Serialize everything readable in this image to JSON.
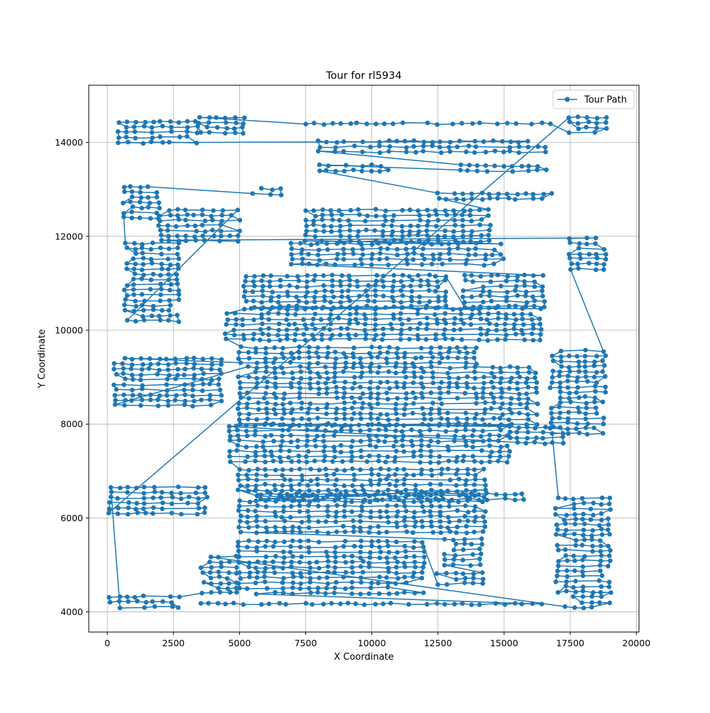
{
  "chart_data": {
    "type": "line",
    "title": "Tour for rl5934",
    "xlabel": "X Coordinate",
    "ylabel": "Y Coordinate",
    "xlim": [
      -700,
      20100
    ],
    "ylim": [
      3570,
      15220
    ],
    "xticks": [
      0,
      2500,
      5000,
      7500,
      10000,
      12500,
      15000,
      17500,
      20000
    ],
    "xtick_labels": [
      "0",
      "2500",
      "5000",
      "7500",
      "10000",
      "12500",
      "15000",
      "17500",
      "20000"
    ],
    "yticks": [
      4000,
      6000,
      8000,
      10000,
      12000,
      14000
    ],
    "ytick_labels": [
      "4000",
      "6000",
      "8000",
      "10000",
      "12000",
      "14000"
    ],
    "grid": true,
    "legend": {
      "position": "top-right",
      "entries": [
        "Tour Path"
      ]
    },
    "series": [
      {
        "name": "Tour Path",
        "color": "#1f77b4",
        "marker": "circle",
        "row_spacing": 110,
        "point_spacing": 330,
        "bands": [
          {
            "y": [
              4170,
              4200
            ],
            "x": [
              3500,
              16500
            ]
          },
          {
            "y": [
              4400,
              5500
            ],
            "x": [
              5000,
              12200
            ]
          },
          {
            "y": [
              4600,
              4860
            ],
            "x": [
              12500,
              14200
            ]
          },
          {
            "y": [
              5000,
              5600
            ],
            "x": [
              12800,
              14200
            ]
          },
          {
            "y": [
              5700,
              6620
            ],
            "x": [
              5000,
              14500
            ]
          },
          {
            "y": [
              6400,
              6600
            ],
            "x": [
              5800,
              15700
            ]
          },
          {
            "y": [
              6700,
              7100
            ],
            "x": [
              5000,
              14400
            ]
          },
          {
            "y": [
              7200,
              8000
            ],
            "x": [
              4600,
              15200
            ]
          },
          {
            "y": [
              7600,
              8000
            ],
            "x": [
              15200,
              17500
            ]
          },
          {
            "y": [
              8000,
              9300
            ],
            "x": [
              5000,
              16500
            ]
          },
          {
            "y": [
              8400,
              9400
            ],
            "x": [
              300,
              4500
            ]
          },
          {
            "y": [
              9300,
              9700
            ],
            "x": [
              5000,
              14000
            ]
          },
          {
            "y": [
              9800,
              10500
            ],
            "x": [
              4500,
              16500
            ]
          },
          {
            "y": [
              10500,
              11200
            ],
            "x": [
              5200,
              13000
            ]
          },
          {
            "y": [
              10500,
              11200
            ],
            "x": [
              13500,
              16500
            ]
          },
          {
            "y": [
              11400,
              11900
            ],
            "x": [
              7000,
              15000
            ]
          },
          {
            "y": [
              11900,
              12600
            ],
            "x": [
              7500,
              14500
            ]
          },
          {
            "y": [
              12800,
              13000
            ],
            "x": [
              12500,
              16800
            ]
          },
          {
            "y": [
              13400,
              13600
            ],
            "x": [
              8000,
              11000
            ]
          },
          {
            "y": [
              13400,
              13600
            ],
            "x": [
              13000,
              16800
            ]
          },
          {
            "y": [
              13800,
              14100
            ],
            "x": [
              8000,
              16800
            ]
          },
          {
            "y": [
              14000,
              14500
            ],
            "x": [
              400,
              3500
            ]
          },
          {
            "y": [
              14200,
              14600
            ],
            "x": [
              3500,
              5200
            ]
          },
          {
            "y": [
              14400,
              14500
            ],
            "x": [
              7500,
              16800
            ]
          },
          {
            "y": [
              14200,
              14600
            ],
            "x": [
              17500,
              19000
            ]
          },
          {
            "y": [
              6100,
              6700
            ],
            "x": [
              100,
              3800
            ]
          },
          {
            "y": [
              4100,
              4400
            ],
            "x": [
              100,
              3000
            ]
          },
          {
            "y": [
              4400,
              5200
            ],
            "x": [
              3600,
              5200
            ]
          },
          {
            "y": [
              4100,
              6500
            ],
            "x": [
              17000,
              19200
            ]
          },
          {
            "y": [
              7800,
              9600
            ],
            "x": [
              16800,
              19000
            ]
          },
          {
            "y": [
              11300,
              12000
            ],
            "x": [
              17500,
              19000
            ]
          },
          {
            "y": [
              11900,
              12600
            ],
            "x": [
              2000,
              5000
            ]
          },
          {
            "y": [
              10200,
              11900
            ],
            "x": [
              700,
              3000
            ]
          },
          {
            "y": [
              12400,
              13100
            ],
            "x": [
              600,
              2200
            ]
          },
          {
            "y": [
              12900,
              13100
            ],
            "x": [
              5200,
              6800
            ]
          }
        ]
      }
    ]
  }
}
